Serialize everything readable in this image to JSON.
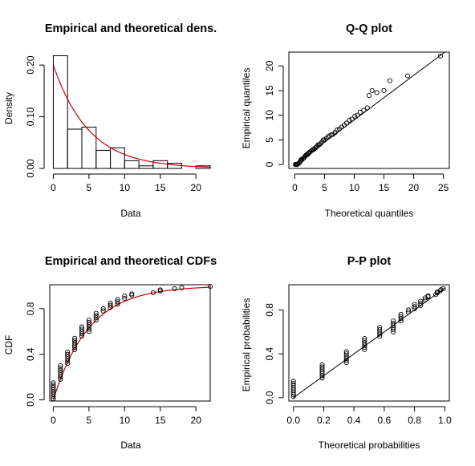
{
  "chart_data": [
    {
      "type": "histogram",
      "title": "Empirical and theoretical dens.",
      "xlabel": "Data",
      "ylabel": "Density",
      "xlim": [
        -0.5,
        22
      ],
      "ylim": [
        0,
        0.225
      ],
      "xticks": [
        0,
        5,
        10,
        15,
        20
      ],
      "yticks": [
        0.0,
        0.1,
        0.2
      ],
      "ytick_labels": [
        "0.00",
        "0.10",
        "0.20"
      ],
      "bins": [
        {
          "x0": 0,
          "x1": 2,
          "density": 0.218
        },
        {
          "x0": 2,
          "x1": 4,
          "density": 0.076
        },
        {
          "x0": 4,
          "x1": 6,
          "density": 0.08
        },
        {
          "x0": 6,
          "x1": 8,
          "density": 0.035
        },
        {
          "x0": 8,
          "x1": 10,
          "density": 0.04
        },
        {
          "x0": 10,
          "x1": 12,
          "density": 0.015
        },
        {
          "x0": 12,
          "x1": 14,
          "density": 0.005
        },
        {
          "x0": 14,
          "x1": 16,
          "density": 0.015
        },
        {
          "x0": 16,
          "x1": 18,
          "density": 0.01
        },
        {
          "x0": 18,
          "x1": 20,
          "density": 0.0
        },
        {
          "x0": 20,
          "x1": 22,
          "density": 0.005
        }
      ],
      "theoretical_curve": {
        "distribution": "exponential",
        "rate": 0.2,
        "color": "#cc0000"
      }
    },
    {
      "type": "scatter",
      "title": "Q-Q plot",
      "xlabel": "Theoretical quantiles",
      "ylabel": "Empirical quantiles",
      "xlim": [
        -1,
        26
      ],
      "ylim": [
        -0.8,
        22.8
      ],
      "xticks": [
        0,
        5,
        10,
        15,
        20,
        25
      ],
      "yticks": [
        0,
        5,
        10,
        15,
        20
      ],
      "reference_line": [
        [
          0,
          0
        ],
        [
          26,
          23.5
        ]
      ],
      "points": [
        [
          0.1,
          0
        ],
        [
          0.2,
          0
        ],
        [
          0.3,
          0
        ],
        [
          0.4,
          0
        ],
        [
          0.5,
          0.1
        ],
        [
          0.6,
          0.2
        ],
        [
          0.8,
          0.4
        ],
        [
          0.9,
          0.6
        ],
        [
          1.0,
          0.8
        ],
        [
          1.1,
          1
        ],
        [
          1.2,
          1
        ],
        [
          1.4,
          1.2
        ],
        [
          1.5,
          1.3
        ],
        [
          1.7,
          1.6
        ],
        [
          1.8,
          1.8
        ],
        [
          2.0,
          2
        ],
        [
          2.1,
          2
        ],
        [
          2.3,
          2.2
        ],
        [
          2.4,
          2.4
        ],
        [
          2.6,
          2.6
        ],
        [
          2.8,
          2.8
        ],
        [
          3.0,
          3
        ],
        [
          3.1,
          3
        ],
        [
          3.3,
          3.2
        ],
        [
          3.5,
          3.4
        ],
        [
          3.7,
          3.6
        ],
        [
          3.9,
          4
        ],
        [
          4.1,
          4
        ],
        [
          4.3,
          4.2
        ],
        [
          4.6,
          4.6
        ],
        [
          4.8,
          5
        ],
        [
          5.0,
          5
        ],
        [
          5.3,
          5.3
        ],
        [
          5.6,
          5.6
        ],
        [
          5.8,
          5.8
        ],
        [
          6.1,
          6
        ],
        [
          6.4,
          6.1
        ],
        [
          6.8,
          6.5
        ],
        [
          7.1,
          7
        ],
        [
          7.5,
          7.2
        ],
        [
          7.9,
          7.6
        ],
        [
          8.3,
          8
        ],
        [
          8.7,
          8.4
        ],
        [
          9.2,
          9
        ],
        [
          9.6,
          9.2
        ],
        [
          10.1,
          9.8
        ],
        [
          10.5,
          10
        ],
        [
          11.0,
          10.6
        ],
        [
          11.6,
          11
        ],
        [
          12.2,
          11.5
        ],
        [
          12.5,
          14
        ],
        [
          13.0,
          15
        ],
        [
          13.8,
          14.6
        ],
        [
          15.0,
          15
        ],
        [
          16.0,
          17
        ],
        [
          19.0,
          18
        ],
        [
          24.5,
          22
        ]
      ]
    },
    {
      "type": "scatter",
      "title": "Empirical and theoretical CDFs",
      "xlabel": "Data",
      "ylabel": "CDF",
      "xlim": [
        -0.5,
        22
      ],
      "ylim": [
        -0.01,
        1.01
      ],
      "xticks": [
        0,
        5,
        10,
        15,
        20
      ],
      "yticks": [
        0.0,
        0.4,
        0.8
      ],
      "ytick_labels": [
        "0.0",
        "0.4",
        "0.8"
      ],
      "theoretical_curve": {
        "distribution": "exponential",
        "rate": 0.2,
        "color": "#cc0000"
      },
      "points": [
        [
          0,
          0.01
        ],
        [
          0,
          0.03
        ],
        [
          0,
          0.05
        ],
        [
          0,
          0.07
        ],
        [
          0,
          0.09
        ],
        [
          0,
          0.11
        ],
        [
          0,
          0.13
        ],
        [
          0,
          0.15
        ],
        [
          1,
          0.18
        ],
        [
          1,
          0.2
        ],
        [
          1,
          0.22
        ],
        [
          1,
          0.24
        ],
        [
          1,
          0.26
        ],
        [
          1,
          0.28
        ],
        [
          1,
          0.3
        ],
        [
          2,
          0.32
        ],
        [
          2,
          0.34
        ],
        [
          2,
          0.36
        ],
        [
          2,
          0.38
        ],
        [
          2,
          0.4
        ],
        [
          2,
          0.42
        ],
        [
          3,
          0.44
        ],
        [
          3,
          0.46
        ],
        [
          3,
          0.48
        ],
        [
          3,
          0.5
        ],
        [
          3,
          0.52
        ],
        [
          3,
          0.54
        ],
        [
          4,
          0.56
        ],
        [
          4,
          0.58
        ],
        [
          4,
          0.6
        ],
        [
          4,
          0.62
        ],
        [
          4,
          0.64
        ],
        [
          5,
          0.6
        ],
        [
          5,
          0.62
        ],
        [
          5,
          0.64
        ],
        [
          5,
          0.66
        ],
        [
          5,
          0.68
        ],
        [
          5,
          0.7
        ],
        [
          6,
          0.7
        ],
        [
          6,
          0.72
        ],
        [
          6,
          0.74
        ],
        [
          6,
          0.76
        ],
        [
          7,
          0.78
        ],
        [
          7,
          0.8
        ],
        [
          8,
          0.81
        ],
        [
          8,
          0.83
        ],
        [
          8,
          0.85
        ],
        [
          9,
          0.84
        ],
        [
          9,
          0.86
        ],
        [
          9,
          0.88
        ],
        [
          10,
          0.89
        ],
        [
          10,
          0.91
        ],
        [
          11,
          0.92
        ],
        [
          11,
          0.93
        ],
        [
          14,
          0.94
        ],
        [
          15,
          0.955
        ],
        [
          15,
          0.965
        ],
        [
          17,
          0.975
        ],
        [
          18,
          0.985
        ],
        [
          22,
          0.995
        ]
      ]
    },
    {
      "type": "scatter",
      "title": "P-P plot",
      "xlabel": "Theoretical probabilities",
      "ylabel": "Empirical probabilities",
      "xlim": [
        -0.03,
        1.03
      ],
      "ylim": [
        -0.03,
        1.03
      ],
      "xticks": [
        0.0,
        0.2,
        0.4,
        0.6,
        0.8,
        1.0
      ],
      "xtick_labels": [
        "0.0",
        "0.2",
        "0.4",
        "0.6",
        "0.8",
        "1.0"
      ],
      "yticks": [
        0.0,
        0.4,
        0.8
      ],
      "ytick_labels": [
        "0.0",
        "0.4",
        "0.8"
      ],
      "reference_line": [
        [
          0,
          0
        ],
        [
          1,
          1
        ]
      ],
      "points": [
        [
          0,
          0.01
        ],
        [
          0,
          0.03
        ],
        [
          0,
          0.05
        ],
        [
          0,
          0.07
        ],
        [
          0,
          0.09
        ],
        [
          0,
          0.11
        ],
        [
          0,
          0.13
        ],
        [
          0,
          0.15
        ],
        [
          0.19,
          0.18
        ],
        [
          0.19,
          0.2
        ],
        [
          0.19,
          0.22
        ],
        [
          0.19,
          0.24
        ],
        [
          0.19,
          0.26
        ],
        [
          0.19,
          0.28
        ],
        [
          0.19,
          0.3
        ],
        [
          0.35,
          0.32
        ],
        [
          0.35,
          0.34
        ],
        [
          0.35,
          0.36
        ],
        [
          0.35,
          0.38
        ],
        [
          0.35,
          0.4
        ],
        [
          0.35,
          0.42
        ],
        [
          0.47,
          0.44
        ],
        [
          0.47,
          0.46
        ],
        [
          0.47,
          0.48
        ],
        [
          0.47,
          0.5
        ],
        [
          0.47,
          0.52
        ],
        [
          0.47,
          0.54
        ],
        [
          0.57,
          0.56
        ],
        [
          0.57,
          0.58
        ],
        [
          0.57,
          0.6
        ],
        [
          0.57,
          0.62
        ],
        [
          0.57,
          0.64
        ],
        [
          0.66,
          0.6
        ],
        [
          0.66,
          0.62
        ],
        [
          0.66,
          0.64
        ],
        [
          0.66,
          0.66
        ],
        [
          0.66,
          0.68
        ],
        [
          0.66,
          0.7
        ],
        [
          0.71,
          0.7
        ],
        [
          0.71,
          0.72
        ],
        [
          0.71,
          0.74
        ],
        [
          0.71,
          0.76
        ],
        [
          0.76,
          0.78
        ],
        [
          0.76,
          0.8
        ],
        [
          0.8,
          0.81
        ],
        [
          0.8,
          0.83
        ],
        [
          0.8,
          0.85
        ],
        [
          0.84,
          0.84
        ],
        [
          0.84,
          0.86
        ],
        [
          0.84,
          0.88
        ],
        [
          0.87,
          0.89
        ],
        [
          0.87,
          0.91
        ],
        [
          0.89,
          0.92
        ],
        [
          0.89,
          0.93
        ],
        [
          0.94,
          0.94
        ],
        [
          0.95,
          0.955
        ],
        [
          0.95,
          0.965
        ],
        [
          0.97,
          0.975
        ],
        [
          0.975,
          0.985
        ],
        [
          0.99,
          0.995
        ]
      ]
    }
  ]
}
